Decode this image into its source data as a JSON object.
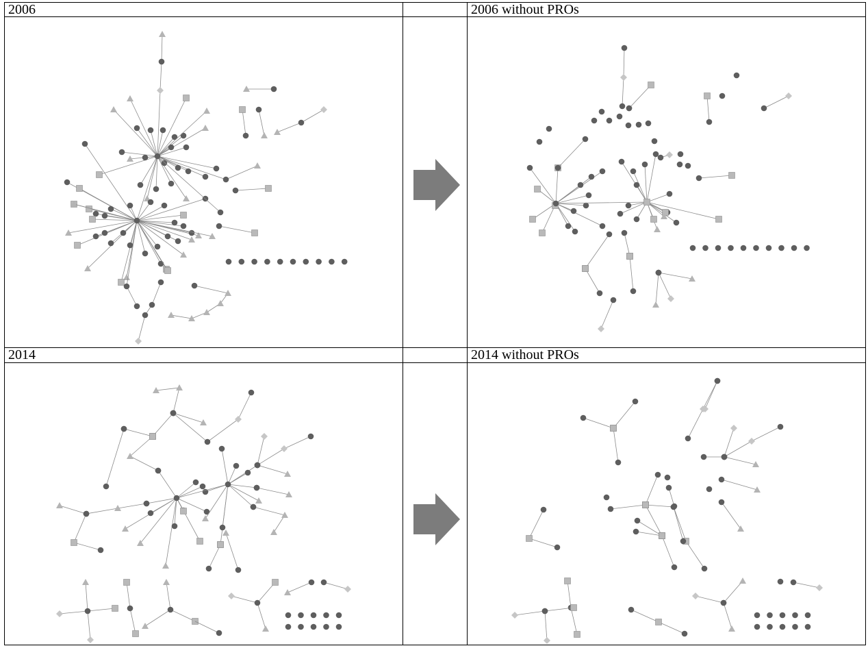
{
  "panels": [
    {
      "key": "p2006",
      "label": "2006"
    },
    {
      "key": "p2006n",
      "label": "2006 without PROs"
    },
    {
      "key": "p2014",
      "label": "2014"
    },
    {
      "key": "p2014n",
      "label": "2014 without PROs"
    }
  ],
  "legend_colors": {
    "circle": "#5e5e5e",
    "square": "#b9b9b9",
    "triangle": "#b4b4b4",
    "diamond": "#c6c6c6",
    "edge": "#8a8a8a",
    "arrow": "#7c7c7c"
  }
}
